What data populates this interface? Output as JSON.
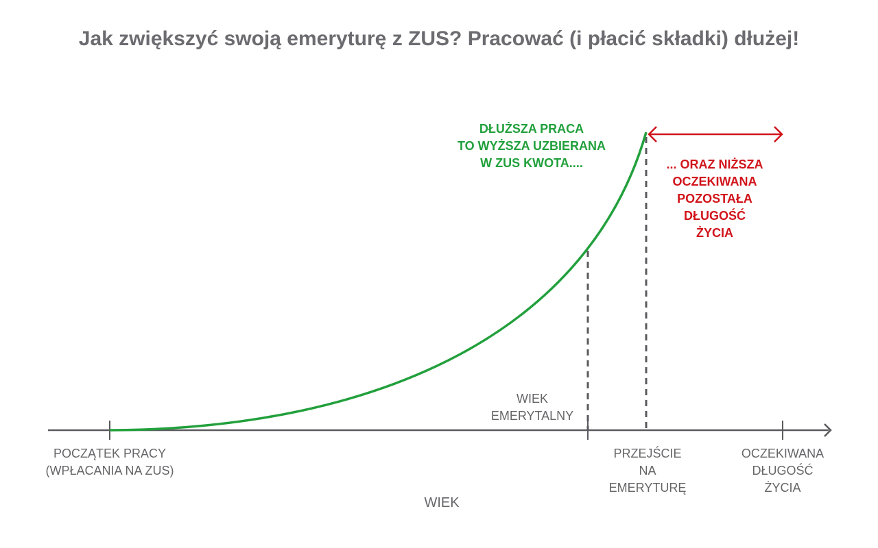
{
  "title": "Jak zwiększyć swoją emeryturę z ZUS? Pracować (i płacić składki) dłużej!",
  "annotations": {
    "green": [
      "DŁUŻSZA PRACA",
      "TO WYŻSZA UZBIERANA",
      "W ZUS KWOTA...."
    ],
    "red": [
      "... ORAZ NIŻSZA",
      "OCZEKIWANA",
      "POZOSTAŁA",
      "DŁUGOŚĆ",
      "ŻYCIA"
    ],
    "retirement_age": [
      "WIEK",
      "EMERYTALNY"
    ]
  },
  "axis": {
    "label": "WIEK",
    "ticks": {
      "start": [
        "POCZĄTEK PRACY",
        "(WPŁACANIA NA ZUS)"
      ],
      "retirement": [
        "PRZEJŚCIE",
        "NA",
        "EMERYTURĘ"
      ],
      "life_expectancy": [
        "OCZEKIWANA",
        "DŁUGOŚĆ",
        "ŻYCIA"
      ]
    }
  },
  "colors": {
    "curve": "#22a03c",
    "arrow": "#d1141b",
    "axis": "#5a5a5e",
    "title": "#6b6b70"
  }
}
